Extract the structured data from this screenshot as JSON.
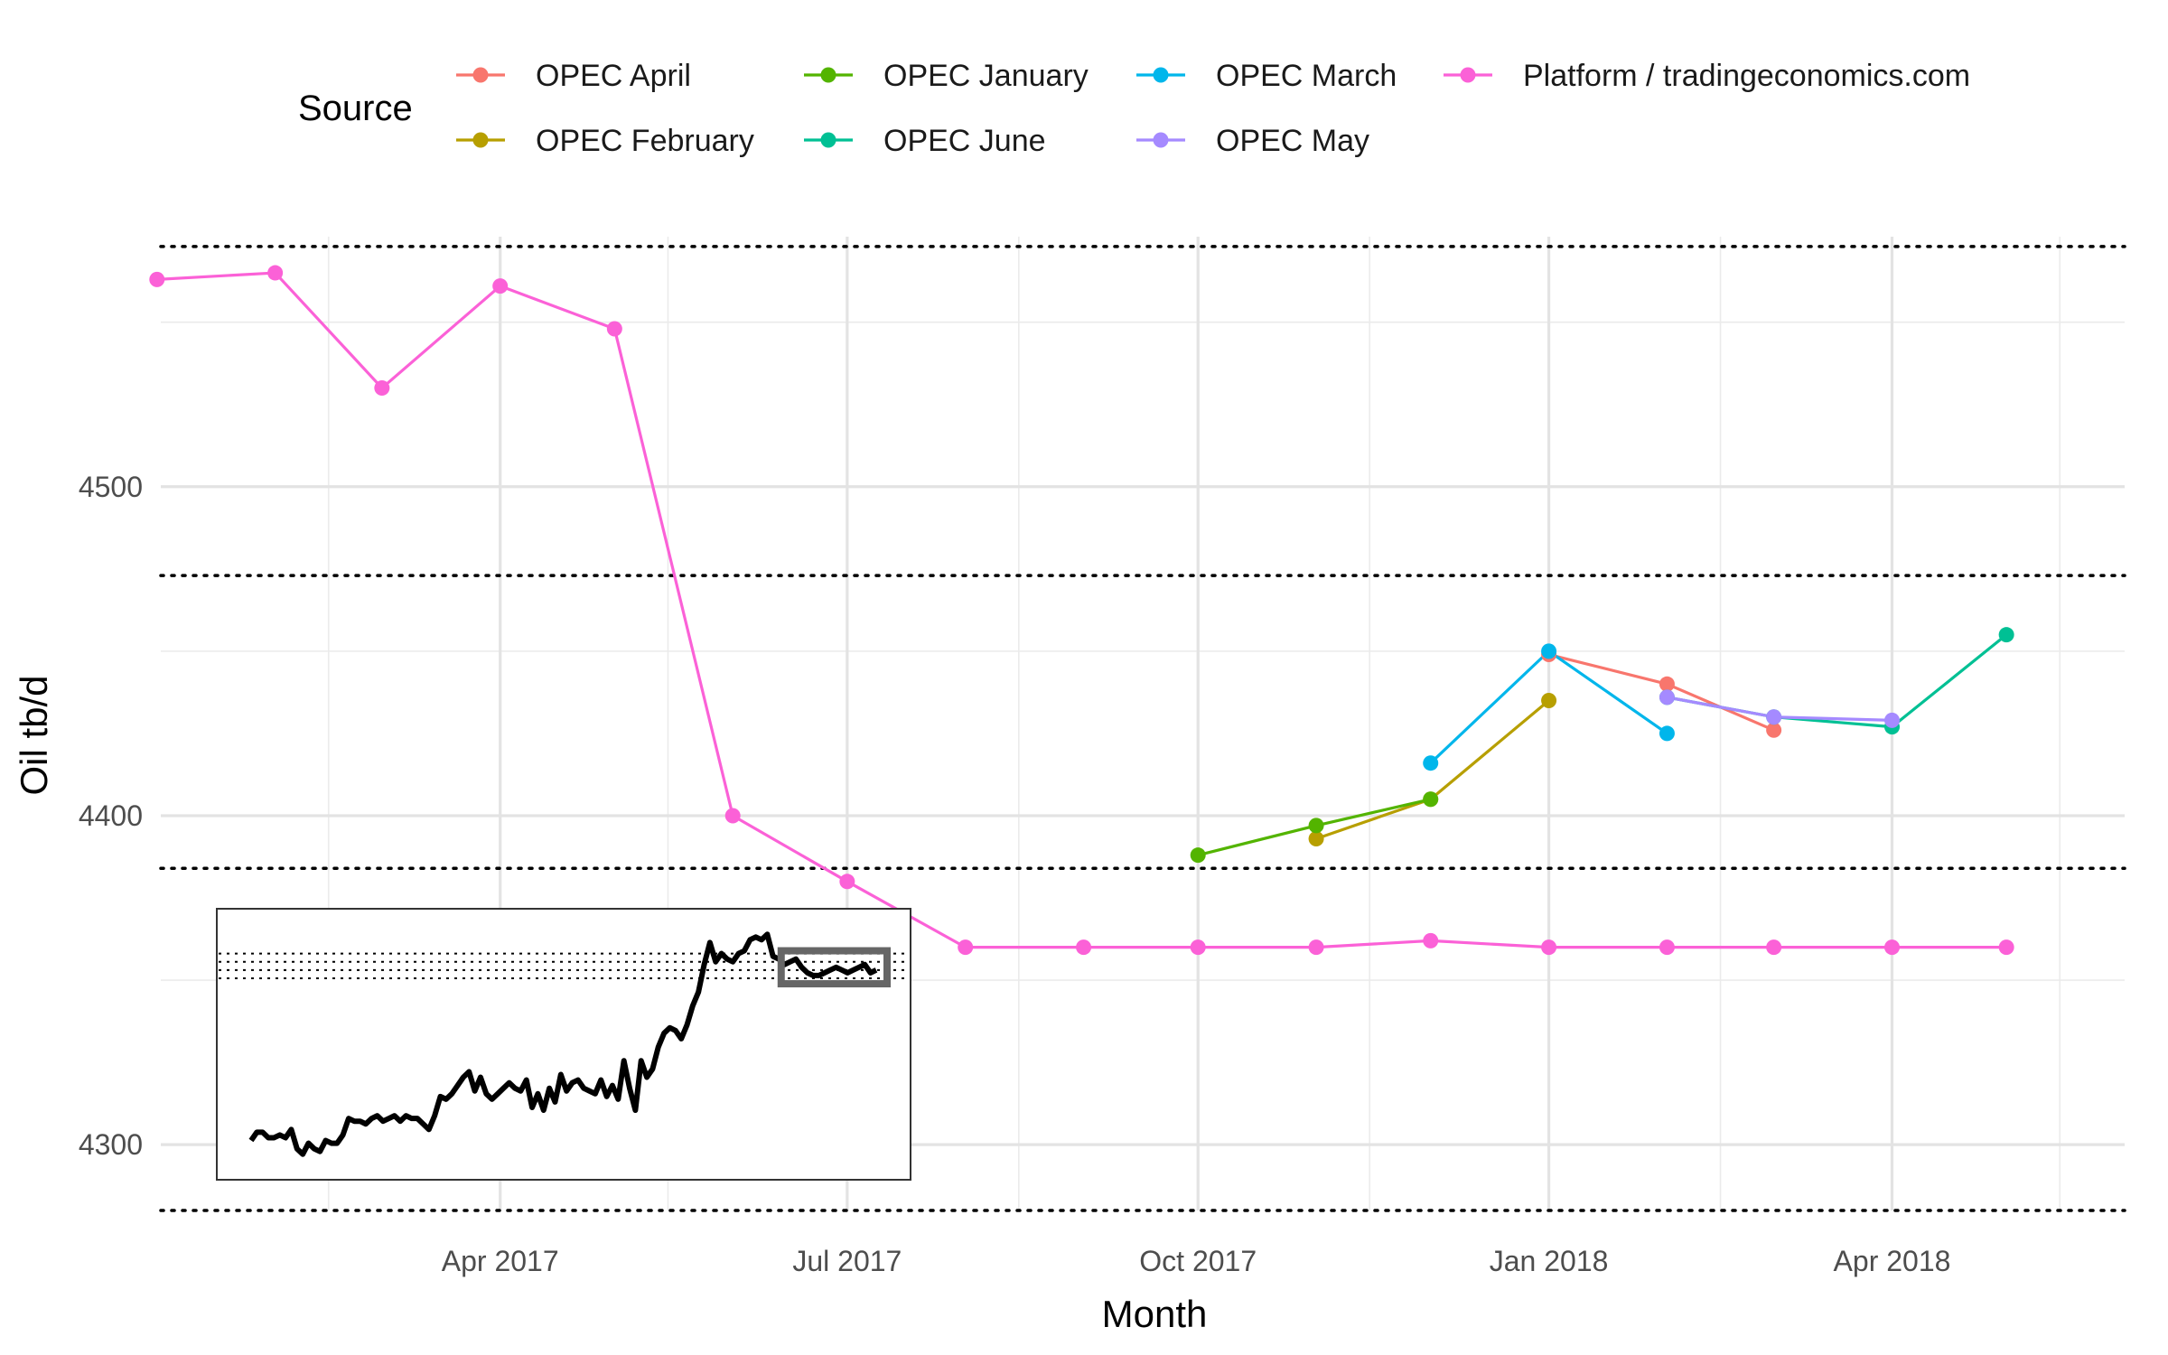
{
  "chart_data": {
    "type": "line",
    "xlabel": "Month",
    "ylabel": "Oil tb/d",
    "legend_title": "Source",
    "legend_position": "top",
    "grid": true,
    "ylim": [
      4280,
      4576
    ],
    "xlim": [
      "2017-01-02",
      "2018-06-01"
    ],
    "x_ticks": [
      {
        "date": "2017-04-01",
        "label": "Apr 2017"
      },
      {
        "date": "2017-07-01",
        "label": "Jul 2017"
      },
      {
        "date": "2017-10-01",
        "label": "Oct 2017"
      },
      {
        "date": "2018-01-01",
        "label": "Jan 2018"
      },
      {
        "date": "2018-04-01",
        "label": "Apr 2018"
      }
    ],
    "x_minor_ticks": [
      "2017-02-15",
      "2017-05-15",
      "2017-08-15",
      "2017-11-15",
      "2018-02-15",
      "2018-05-15"
    ],
    "y_ticks": [
      4300,
      4400,
      4500
    ],
    "y_minor_ticks": [
      4350,
      4450,
      4550
    ],
    "reference_lines": [
      4280,
      4384,
      4473,
      4573
    ],
    "series": [
      {
        "name": "OPEC April",
        "color": "#F8766D",
        "x": [
          "2018-01-01",
          "2018-02-01",
          "2018-03-01"
        ],
        "y": [
          4449,
          4440,
          4426
        ]
      },
      {
        "name": "OPEC February",
        "color": "#B79F00",
        "x": [
          "2017-11-01",
          "2017-12-01",
          "2018-01-01"
        ],
        "y": [
          4393,
          4405,
          4435
        ]
      },
      {
        "name": "OPEC January",
        "color": "#53B400",
        "x": [
          "2017-10-01",
          "2017-11-01",
          "2017-12-01"
        ],
        "y": [
          4388,
          4397,
          4405
        ]
      },
      {
        "name": "OPEC June",
        "color": "#00C094",
        "x": [
          "2018-02-01",
          "2018-03-01",
          "2018-04-01",
          "2018-05-01"
        ],
        "y": [
          4436,
          4430,
          4427,
          4455
        ]
      },
      {
        "name": "OPEC March",
        "color": "#00B6EB",
        "x": [
          "2017-12-01",
          "2018-01-01",
          "2018-02-01"
        ],
        "y": [
          4416,
          4450,
          4425
        ]
      },
      {
        "name": "OPEC May",
        "color": "#A58AFF",
        "x": [
          "2018-02-01",
          "2018-03-01",
          "2018-04-01"
        ],
        "y": [
          4436,
          4430,
          4429
        ]
      },
      {
        "name": "Platform / tradingeconomics.com",
        "color": "#FB61D7",
        "x": [
          "2017-01-01",
          "2017-02-01",
          "2017-03-01",
          "2017-04-01",
          "2017-05-01",
          "2017-06-01",
          "2017-07-01",
          "2017-08-01",
          "2017-09-01",
          "2017-10-01",
          "2017-11-01",
          "2017-12-01",
          "2018-01-01",
          "2018-02-01",
          "2018-03-01",
          "2018-04-01",
          "2018-05-01"
        ],
        "y": [
          4563,
          4565,
          4530,
          4561,
          4548,
          4400,
          4380,
          4360,
          4360,
          4360,
          4360,
          4362,
          4360,
          4360,
          4360,
          4360,
          4360
        ]
      }
    ],
    "legend_order": [
      "OPEC April",
      "OPEC February",
      "OPEC January",
      "OPEC June",
      "OPEC March",
      "OPEC May",
      "Platform / tradingeconomics.com"
    ],
    "inset": {
      "line_color": "#000000",
      "highlight_box_color": "#666666",
      "values": [
        291,
        294,
        294,
        292,
        292,
        293,
        292,
        295,
        288,
        286,
        290,
        288,
        287,
        291,
        290,
        290,
        293,
        299,
        298,
        298,
        297,
        299,
        300,
        298,
        299,
        300,
        298,
        300,
        299,
        299,
        297,
        295,
        300,
        307,
        306,
        308,
        311,
        314,
        316,
        309,
        314,
        308,
        306,
        308,
        310,
        312,
        310,
        309,
        313,
        303,
        308,
        302,
        310,
        305,
        315,
        309,
        312,
        313,
        310,
        309,
        308,
        313,
        307,
        311,
        306,
        320,
        310,
        302,
        320,
        314,
        317,
        325,
        330,
        332,
        331,
        328,
        333,
        340,
        345,
        355,
        363,
        356,
        359,
        357,
        356,
        359,
        360,
        364,
        365,
        364,
        366,
        358,
        357,
        355,
        356,
        357,
        354,
        352,
        351,
        351,
        352,
        353,
        354,
        353,
        352,
        353,
        354,
        355,
        352,
        353
      ],
      "dotted_levels": [
        350,
        353,
        356,
        359
      ]
    }
  }
}
